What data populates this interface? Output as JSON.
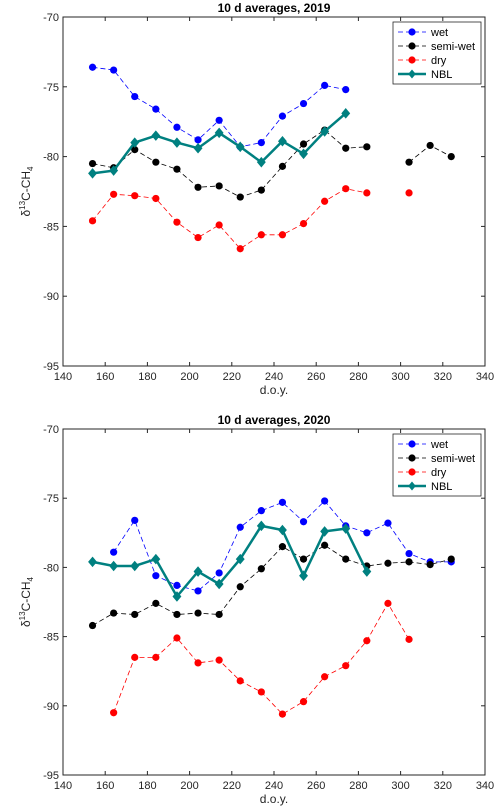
{
  "chart_data": [
    {
      "type": "line",
      "title": "10 d averages, 2019",
      "xlabel": "d.o.y.",
      "ylabel_main": "δ",
      "ylabel_sup": "13",
      "ylabel_mid": "C-CH",
      "ylabel_sub": "4",
      "xlim": [
        140,
        340
      ],
      "ylim": [
        -95,
        -70
      ],
      "xticks": [
        140,
        160,
        180,
        200,
        220,
        240,
        260,
        280,
        300,
        320,
        340
      ],
      "yticks": [
        -95,
        -90,
        -85,
        -80,
        -75,
        -70
      ],
      "xtick_labels": [
        "140",
        "160",
        "180",
        "200",
        "220",
        "240",
        "260",
        "280",
        "300",
        "320",
        "340"
      ],
      "ytick_labels": [
        "-95",
        "-90",
        "-85",
        "-80",
        "-75",
        "-70"
      ],
      "grid": false,
      "legend_position": "top-right",
      "series": [
        {
          "name": "wet",
          "color": "#0000ff",
          "style": "dashed",
          "marker": "circle",
          "x": [
            154,
            164,
            174,
            184,
            194,
            204,
            214,
            224,
            234,
            244,
            254,
            264,
            274
          ],
          "y": [
            -73.6,
            -73.8,
            -75.7,
            -76.6,
            -77.9,
            -78.8,
            -77.4,
            -79.3,
            -79.0,
            -77.1,
            -76.2,
            -74.9,
            -75.2
          ]
        },
        {
          "name": "semi-wet",
          "color": "#000000",
          "style": "dashed",
          "marker": "circle",
          "x": [
            154,
            164,
            174,
            184,
            194,
            204,
            214,
            224,
            234,
            244,
            254,
            264,
            274,
            284,
            null,
            304,
            314,
            324
          ],
          "y": [
            -80.5,
            -80.8,
            -79.5,
            -80.4,
            -80.9,
            -82.2,
            -82.1,
            -82.9,
            -82.4,
            -80.7,
            -79.1,
            -78.1,
            -79.4,
            -79.3,
            null,
            -80.4,
            -79.2,
            -80.0
          ]
        },
        {
          "name": "dry",
          "color": "#ff0000",
          "style": "dashed",
          "marker": "circle",
          "x": [
            154,
            164,
            174,
            184,
            194,
            204,
            214,
            224,
            234,
            244,
            254,
            264,
            274,
            284,
            null,
            304
          ],
          "y": [
            -84.6,
            -82.7,
            -82.8,
            -83.0,
            -84.7,
            -85.8,
            -84.9,
            -86.6,
            -85.6,
            -85.6,
            -84.8,
            -83.2,
            -82.3,
            -82.6,
            null,
            -82.6
          ]
        },
        {
          "name": "NBL",
          "color": "#008080",
          "style": "solid",
          "marker": "diamond",
          "x": [
            154,
            164,
            174,
            184,
            194,
            204,
            214,
            224,
            234,
            244,
            254,
            264,
            274
          ],
          "y": [
            -81.2,
            -81.0,
            -79.0,
            -78.5,
            -79.0,
            -79.4,
            -78.3,
            -79.3,
            -80.4,
            -78.9,
            -79.8,
            -78.2,
            -76.9
          ]
        }
      ]
    },
    {
      "type": "line",
      "title": "10 d averages, 2020",
      "xlabel": "d.o.y.",
      "ylabel_main": "δ",
      "ylabel_sup": "13",
      "ylabel_mid": "C-CH",
      "ylabel_sub": "4",
      "xlim": [
        140,
        340
      ],
      "ylim": [
        -95,
        -70
      ],
      "xticks": [
        140,
        160,
        180,
        200,
        220,
        240,
        260,
        280,
        300,
        320,
        340
      ],
      "yticks": [
        -95,
        -90,
        -85,
        -80,
        -75,
        -70
      ],
      "xtick_labels": [
        "140",
        "160",
        "180",
        "200",
        "220",
        "240",
        "260",
        "280",
        "300",
        "320",
        "340"
      ],
      "ytick_labels": [
        "-95",
        "-90",
        "-85",
        "-80",
        "-75",
        "-70"
      ],
      "grid": false,
      "legend_position": "top-right",
      "series": [
        {
          "name": "wet",
          "color": "#0000ff",
          "style": "dashed",
          "marker": "circle",
          "x": [
            164,
            174,
            184,
            194,
            204,
            214,
            224,
            234,
            244,
            254,
            264,
            274,
            284,
            294,
            304,
            314,
            324
          ],
          "y": [
            -78.9,
            -76.6,
            -80.6,
            -81.3,
            -81.7,
            -80.4,
            -77.1,
            -75.9,
            -75.3,
            -76.7,
            -75.2,
            -77.0,
            -77.5,
            -76.8,
            -79.0,
            -79.6,
            -79.6
          ]
        },
        {
          "name": "semi-wet",
          "color": "#000000",
          "style": "dashed",
          "marker": "circle",
          "x": [
            154,
            164,
            174,
            184,
            194,
            204,
            214,
            224,
            234,
            244,
            254,
            264,
            274,
            284,
            294,
            304,
            314,
            324
          ],
          "y": [
            -84.2,
            -83.3,
            -83.4,
            -82.6,
            -83.4,
            -83.3,
            -83.4,
            -81.4,
            -80.1,
            -78.5,
            -79.4,
            -78.4,
            -79.4,
            -79.9,
            -79.7,
            -79.6,
            -79.8,
            -79.4
          ]
        },
        {
          "name": "dry",
          "color": "#ff0000",
          "style": "dashed",
          "marker": "circle",
          "x": [
            164,
            174,
            184,
            194,
            204,
            214,
            224,
            234,
            244,
            254,
            264,
            274,
            284,
            294,
            304
          ],
          "y": [
            -90.5,
            -86.5,
            -86.5,
            -85.1,
            -86.9,
            -86.7,
            -88.2,
            -89.0,
            -90.6,
            -89.7,
            -87.9,
            -87.1,
            -85.3,
            -82.6,
            -85.2
          ]
        },
        {
          "name": "NBL",
          "color": "#008080",
          "style": "solid",
          "marker": "diamond",
          "x": [
            154,
            164,
            174,
            184,
            194,
            204,
            214,
            224,
            234,
            244,
            254,
            264,
            274,
            284
          ],
          "y": [
            -79.6,
            -79.9,
            -79.9,
            -79.4,
            -82.1,
            -80.3,
            -81.2,
            -79.4,
            -77.0,
            -77.3,
            -80.6,
            -77.4,
            -77.2,
            -80.3
          ]
        }
      ]
    }
  ]
}
